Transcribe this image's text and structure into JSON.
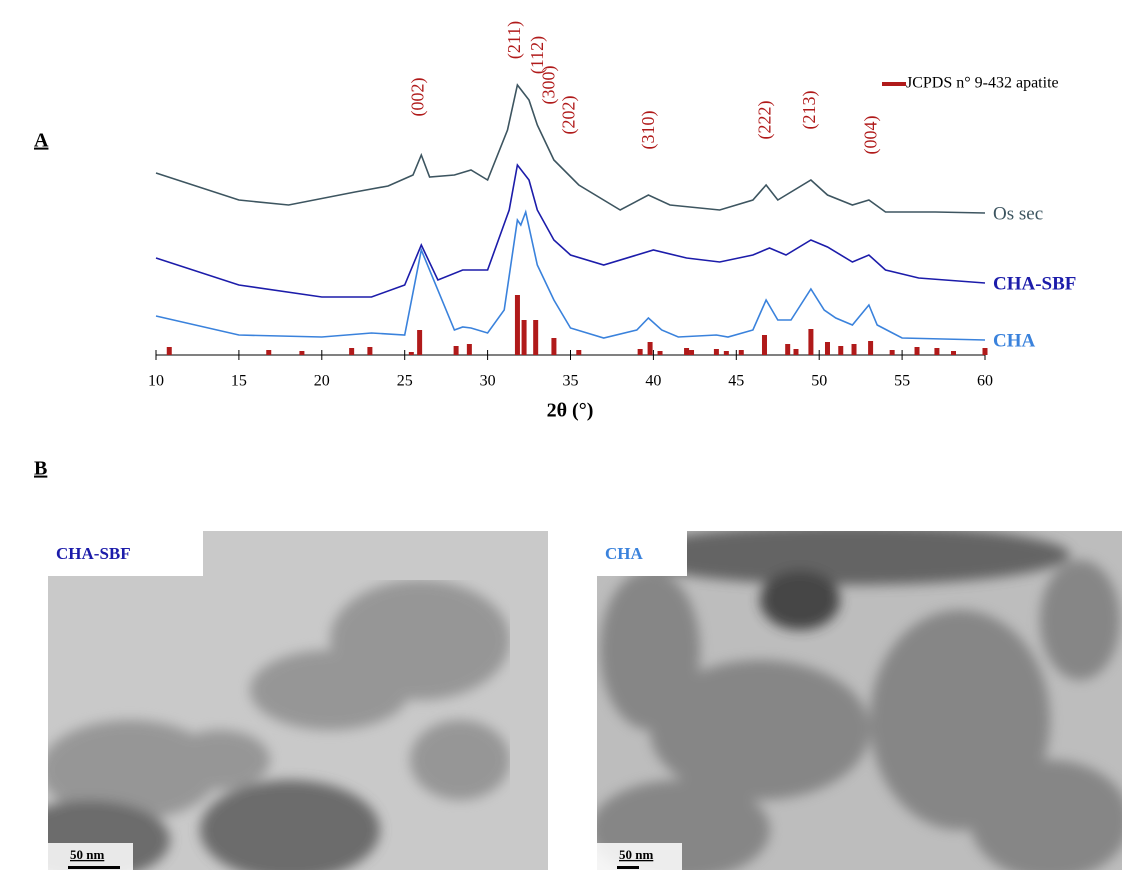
{
  "chart_data": {
    "type": "line",
    "panel_labels": [
      "A",
      "B"
    ],
    "xlabel": "2θ (°)",
    "xlim": [
      10,
      60
    ],
    "xticks": [
      10,
      15,
      20,
      25,
      30,
      35,
      40,
      45,
      50,
      55,
      60
    ],
    "ylim": [
      0,
      300
    ],
    "series": [
      {
        "name": "Os sec",
        "color": "#3d5560",
        "x": [
          10,
          15,
          18,
          22,
          24,
          25.5,
          26,
          26.5,
          28,
          29,
          30,
          31.2,
          31.8,
          32.5,
          33,
          34,
          35.5,
          38,
          39.7,
          41,
          44,
          46,
          46.8,
          47.5,
          49.5,
          50.5,
          52,
          53,
          54,
          57,
          60
        ],
        "values": [
          182,
          155,
          150,
          163,
          169,
          180,
          200,
          178,
          180,
          185,
          175,
          225,
          270,
          255,
          230,
          195,
          170,
          145,
          160,
          150,
          145,
          155,
          170,
          155,
          175,
          160,
          150,
          155,
          143,
          143,
          142
        ]
      },
      {
        "name": "CHA-SBF",
        "color": "#1c1caa",
        "x": [
          10,
          15,
          20,
          23,
          25,
          26,
          27,
          28.5,
          30,
          31.3,
          31.8,
          32.5,
          33,
          34,
          35,
          37,
          39,
          40,
          42,
          44,
          46,
          47,
          48,
          49.5,
          50.5,
          52,
          53,
          54,
          56,
          60
        ],
        "values": [
          97,
          70,
          58,
          58,
          70,
          110,
          75,
          85,
          85,
          145,
          190,
          175,
          145,
          115,
          100,
          90,
          100,
          105,
          97,
          93,
          100,
          107,
          100,
          115,
          108,
          93,
          100,
          85,
          77,
          72
        ]
      },
      {
        "name": "CHA",
        "color": "#3a82dc",
        "x": [
          10,
          15,
          20,
          23,
          25,
          26,
          28,
          28.5,
          29,
          30,
          31,
          31.8,
          32,
          32.3,
          33,
          34,
          35,
          37,
          39,
          39.7,
          40.5,
          41.5,
          43.8,
          44.5,
          46,
          46.8,
          47.5,
          48.3,
          49.5,
          50.3,
          51,
          52,
          53,
          53.5,
          55,
          60
        ],
        "values": [
          39,
          20,
          18,
          22,
          20,
          105,
          25,
          28,
          27,
          22,
          45,
          135,
          130,
          143,
          90,
          55,
          27,
          17,
          25,
          37,
          25,
          18,
          20,
          18,
          25,
          55,
          35,
          35,
          66,
          45,
          37,
          30,
          50,
          30,
          17,
          15
        ]
      }
    ],
    "reference": {
      "name": "JCPDS n° 9-432 apatite",
      "color": "#b01a1a",
      "x": [
        10.8,
        16.8,
        18.8,
        21.8,
        22.9,
        25.4,
        25.9,
        28.1,
        28.9,
        31.8,
        32.2,
        32.9,
        34.0,
        35.5,
        39.2,
        39.8,
        40.4,
        42.0,
        42.3,
        43.8,
        44.4,
        45.3,
        46.7,
        48.1,
        48.6,
        49.5,
        50.5,
        51.3,
        52.1,
        53.1,
        54.4,
        55.9,
        57.1,
        58.1,
        60.0
      ],
      "values": [
        8,
        5,
        4,
        7,
        8,
        3,
        25,
        9,
        11,
        60,
        35,
        35,
        17,
        5,
        6,
        13,
        4,
        7,
        5,
        6,
        4,
        5,
        20,
        11,
        6,
        26,
        13,
        9,
        11,
        14,
        5,
        8,
        7,
        4,
        7
      ]
    },
    "annotations": [
      {
        "text": "(002)",
        "x": 25.9,
        "y": 258
      },
      {
        "text": "(211)",
        "x": 31.7,
        "y": 315
      },
      {
        "text": "(112)",
        "x": 33.1,
        "y": 300
      },
      {
        "text": "(300)",
        "x": 33.8,
        "y": 270
      },
      {
        "text": "(202)",
        "x": 35.0,
        "y": 240
      },
      {
        "text": "(310)",
        "x": 39.8,
        "y": 225
      },
      {
        "text": "(222)",
        "x": 46.8,
        "y": 235
      },
      {
        "text": "(213)",
        "x": 49.5,
        "y": 245
      },
      {
        "text": "(004)",
        "x": 53.2,
        "y": 220
      }
    ],
    "images": [
      {
        "label": "CHA-SBF",
        "scale": "50 nm"
      },
      {
        "label": "CHA",
        "scale": "50 nm"
      }
    ]
  }
}
